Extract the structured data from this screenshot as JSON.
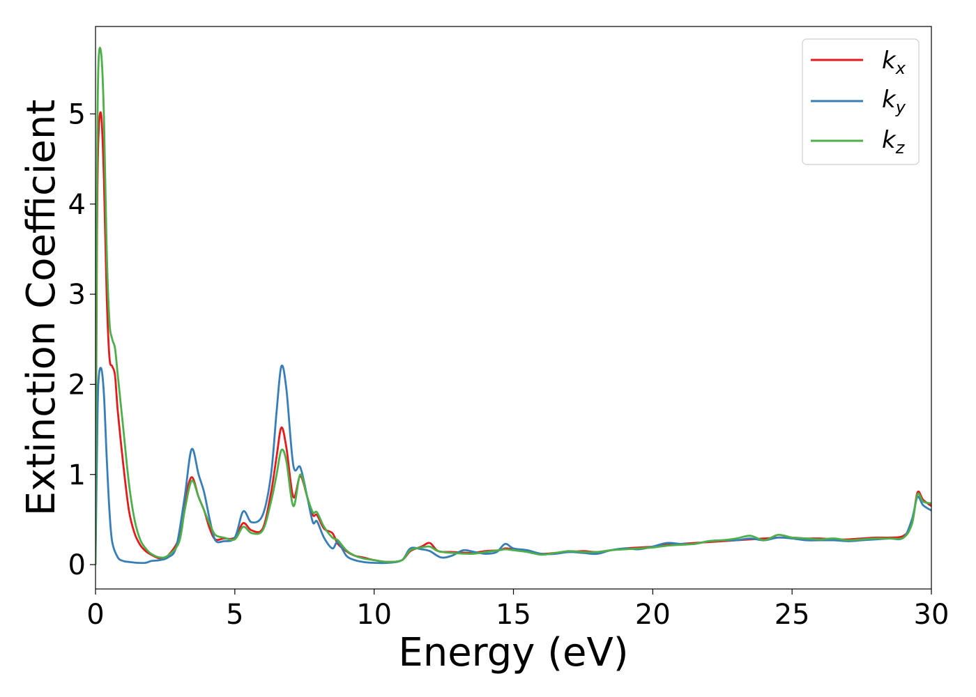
{
  "chart_data": {
    "type": "line",
    "title": "",
    "xlabel": "Energy (eV)",
    "ylabel": "Extinction Coefficient",
    "xlim": [
      0,
      30
    ],
    "ylim": [
      -0.27,
      5.97
    ],
    "xticks": [
      0,
      5,
      10,
      15,
      20,
      25,
      30
    ],
    "yticks": [
      0,
      1,
      2,
      3,
      4,
      5
    ],
    "grid": false,
    "legend_position": "top-right",
    "series": [
      {
        "name": "k",
        "subscript": "x",
        "color": "#e41a1c",
        "x": [
          0,
          0.05,
          0.1,
          0.2,
          0.3,
          0.4,
          0.5,
          0.6,
          0.7,
          0.8,
          1.0,
          1.2,
          1.4,
          1.6,
          1.8,
          2.0,
          2.3,
          2.6,
          3.0,
          3.2,
          3.45,
          3.7,
          3.9,
          4.1,
          4.3,
          4.6,
          5.0,
          5.3,
          5.6,
          6.0,
          6.3,
          6.5,
          6.67,
          6.85,
          7.1,
          7.35,
          7.6,
          7.8,
          7.95,
          8.2,
          8.5,
          8.7,
          9.0,
          9.3,
          9.6,
          10.0,
          10.5,
          11.0,
          11.3,
          11.7,
          12.0,
          12.3,
          12.8,
          13.5,
          14.0,
          14.5,
          14.7,
          15.0,
          15.5,
          16.0,
          16.5,
          17.0,
          17.5,
          18.0,
          18.5,
          19.0,
          19.5,
          20.0,
          20.5,
          21.0,
          21.5,
          22.0,
          22.5,
          23.0,
          23.5,
          24.0,
          24.5,
          25.0,
          25.5,
          26.0,
          26.5,
          27.0,
          27.5,
          28.0,
          28.5,
          29.0,
          29.3,
          29.5,
          29.7,
          30.0
        ],
        "values": [
          0,
          3.5,
          4.7,
          5.0,
          4.3,
          3.0,
          2.3,
          2.2,
          2.1,
          1.7,
          1.1,
          0.6,
          0.35,
          0.22,
          0.15,
          0.11,
          0.07,
          0.1,
          0.3,
          0.7,
          0.97,
          0.75,
          0.6,
          0.4,
          0.28,
          0.29,
          0.3,
          0.46,
          0.38,
          0.4,
          0.8,
          1.2,
          1.52,
          1.3,
          0.75,
          0.98,
          0.75,
          0.55,
          0.55,
          0.4,
          0.35,
          0.23,
          0.15,
          0.1,
          0.08,
          0.05,
          0.03,
          0.05,
          0.15,
          0.2,
          0.24,
          0.15,
          0.14,
          0.13,
          0.15,
          0.16,
          0.18,
          0.17,
          0.15,
          0.12,
          0.13,
          0.14,
          0.15,
          0.14,
          0.16,
          0.18,
          0.19,
          0.2,
          0.22,
          0.23,
          0.24,
          0.25,
          0.26,
          0.27,
          0.28,
          0.29,
          0.3,
          0.3,
          0.29,
          0.29,
          0.28,
          0.28,
          0.29,
          0.3,
          0.3,
          0.32,
          0.45,
          0.8,
          0.72,
          0.65
        ]
      },
      {
        "name": "k",
        "subscript": "y",
        "color": "#377eb8",
        "x": [
          0,
          0.05,
          0.1,
          0.2,
          0.3,
          0.4,
          0.5,
          0.6,
          0.8,
          1.0,
          1.2,
          1.5,
          1.8,
          2.0,
          2.3,
          2.6,
          2.9,
          3.2,
          3.45,
          3.7,
          3.9,
          4.1,
          4.3,
          4.6,
          5.0,
          5.3,
          5.6,
          6.0,
          6.3,
          6.5,
          6.67,
          6.85,
          7.1,
          7.35,
          7.6,
          7.8,
          7.95,
          8.2,
          8.5,
          8.7,
          9.0,
          9.3,
          9.6,
          10.0,
          10.5,
          11.0,
          11.3,
          11.7,
          12.0,
          12.4,
          12.8,
          13.2,
          13.6,
          14.0,
          14.4,
          14.7,
          15.0,
          15.5,
          16.0,
          16.5,
          17.0,
          17.5,
          18.0,
          18.5,
          19.0,
          19.5,
          20.0,
          20.5,
          21.0,
          21.5,
          22.0,
          22.5,
          23.0,
          23.5,
          24.0,
          24.5,
          25.0,
          25.5,
          26.0,
          26.5,
          27.0,
          27.5,
          28.0,
          28.5,
          29.0,
          29.3,
          29.5,
          29.7,
          30.0
        ],
        "values": [
          0,
          1.2,
          2.0,
          2.18,
          1.9,
          1.2,
          0.6,
          0.25,
          0.08,
          0.04,
          0.03,
          0.02,
          0.02,
          0.04,
          0.05,
          0.08,
          0.2,
          0.75,
          1.28,
          1.0,
          0.8,
          0.5,
          0.27,
          0.26,
          0.3,
          0.59,
          0.47,
          0.55,
          1.0,
          1.7,
          2.2,
          1.95,
          1.1,
          1.08,
          0.75,
          0.47,
          0.48,
          0.3,
          0.18,
          0.25,
          0.1,
          0.05,
          0.03,
          0.02,
          0.02,
          0.05,
          0.18,
          0.17,
          0.15,
          0.08,
          0.1,
          0.16,
          0.14,
          0.12,
          0.14,
          0.23,
          0.18,
          0.16,
          0.12,
          0.12,
          0.14,
          0.13,
          0.12,
          0.16,
          0.18,
          0.17,
          0.2,
          0.24,
          0.23,
          0.23,
          0.26,
          0.27,
          0.27,
          0.29,
          0.27,
          0.3,
          0.29,
          0.27,
          0.27,
          0.27,
          0.26,
          0.27,
          0.28,
          0.29,
          0.3,
          0.5,
          0.75,
          0.66,
          0.6
        ]
      },
      {
        "name": "k",
        "subscript": "z",
        "color": "#4daf4a",
        "x": [
          0,
          0.05,
          0.1,
          0.2,
          0.3,
          0.4,
          0.5,
          0.6,
          0.7,
          0.8,
          1.0,
          1.2,
          1.4,
          1.6,
          1.8,
          2.0,
          2.3,
          2.6,
          3.0,
          3.2,
          3.45,
          3.7,
          3.9,
          4.1,
          4.3,
          4.6,
          5.0,
          5.3,
          5.6,
          6.0,
          6.3,
          6.5,
          6.67,
          6.85,
          7.1,
          7.35,
          7.6,
          7.8,
          7.95,
          8.2,
          8.5,
          8.7,
          9.0,
          9.3,
          9.6,
          10.0,
          10.5,
          11.0,
          11.3,
          11.7,
          12.0,
          12.3,
          12.8,
          13.5,
          14.0,
          14.5,
          14.7,
          15.0,
          15.5,
          16.0,
          16.5,
          17.0,
          17.5,
          18.0,
          18.5,
          19.0,
          19.5,
          20.0,
          20.5,
          21.0,
          21.5,
          22.0,
          22.5,
          23.0,
          23.5,
          24.0,
          24.5,
          25.0,
          25.5,
          26.0,
          26.5,
          27.0,
          27.5,
          28.0,
          28.5,
          29.0,
          29.3,
          29.5,
          29.7,
          30.0
        ],
        "values": [
          0,
          4.0,
          5.5,
          5.68,
          5.0,
          3.5,
          2.7,
          2.5,
          2.4,
          2.1,
          1.5,
          0.9,
          0.5,
          0.28,
          0.18,
          0.12,
          0.08,
          0.1,
          0.25,
          0.6,
          0.93,
          0.75,
          0.6,
          0.45,
          0.33,
          0.3,
          0.28,
          0.42,
          0.35,
          0.38,
          0.7,
          1.0,
          1.27,
          1.15,
          0.65,
          1.0,
          0.75,
          0.58,
          0.58,
          0.42,
          0.3,
          0.27,
          0.16,
          0.1,
          0.07,
          0.05,
          0.03,
          0.05,
          0.16,
          0.19,
          0.2,
          0.15,
          0.13,
          0.12,
          0.14,
          0.16,
          0.17,
          0.16,
          0.14,
          0.11,
          0.13,
          0.15,
          0.14,
          0.14,
          0.16,
          0.17,
          0.18,
          0.19,
          0.21,
          0.22,
          0.23,
          0.26,
          0.27,
          0.29,
          0.32,
          0.27,
          0.33,
          0.3,
          0.29,
          0.28,
          0.29,
          0.27,
          0.28,
          0.29,
          0.29,
          0.3,
          0.45,
          0.78,
          0.7,
          0.68
        ]
      }
    ]
  }
}
